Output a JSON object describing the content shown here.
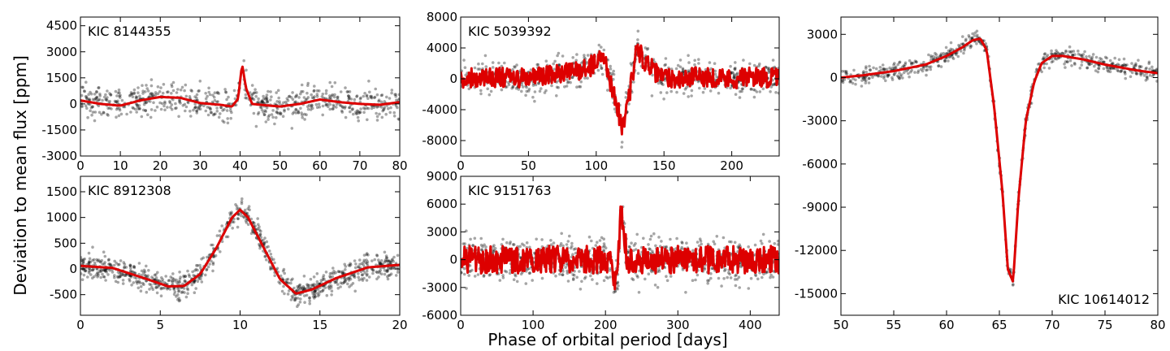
{
  "figure": {
    "ylabel": "Deviation to mean flux [ppm]",
    "xlabel": "Phase of orbital period [days]"
  },
  "colors": {
    "data_points": "#000000",
    "model_line": "#dd0000"
  },
  "chart_data": [
    {
      "type": "scatter",
      "label": "KIC 8144355",
      "label_position": "top-left",
      "xlim": [
        0,
        80
      ],
      "ylim": [
        -3000,
        5000
      ],
      "xticks": [
        0,
        10,
        20,
        30,
        40,
        50,
        60,
        70,
        80
      ],
      "yticks": [
        -3000,
        -1500,
        0,
        1500,
        3000,
        4500
      ],
      "model": {
        "x": [
          0,
          5,
          10,
          15,
          20,
          25,
          30,
          35,
          38,
          39.5,
          40.5,
          41.5,
          43,
          45,
          50,
          55,
          60,
          65,
          70,
          75,
          80
        ],
        "y": [
          200,
          0,
          -100,
          200,
          400,
          350,
          50,
          -50,
          -150,
          300,
          2300,
          900,
          0,
          -50,
          -150,
          0,
          250,
          100,
          0,
          -50,
          100
        ]
      },
      "scatter_spread": 900,
      "n_points": 700
    },
    {
      "type": "scatter",
      "label": "KIC 5039392",
      "label_position": "top-left",
      "xlim": [
        0,
        235
      ],
      "ylim": [
        -10000,
        8000
      ],
      "xticks": [
        0,
        50,
        100,
        150,
        200
      ],
      "yticks": [
        -8000,
        -4000,
        0,
        4000,
        8000
      ],
      "model": {
        "x": [
          0,
          20,
          40,
          60,
          80,
          95,
          105,
          110,
          115,
          119,
          125,
          130,
          135,
          145,
          160,
          180,
          200,
          220,
          235
        ],
        "y": [
          0,
          300,
          0,
          300,
          800,
          1500,
          3000,
          0,
          -3000,
          -6500,
          -1500,
          4000,
          2500,
          500,
          0,
          300,
          0,
          300,
          0
        ],
        "noise": 1300
      },
      "scatter_spread": 2000,
      "n_points": 700
    },
    {
      "type": "scatter",
      "label": "KIC 10614012",
      "label_position": "bottom-right",
      "xlim": [
        50,
        80
      ],
      "ylim": [
        -16500,
        4200
      ],
      "xticks": [
        50,
        55,
        60,
        65,
        70,
        75,
        80
      ],
      "yticks": [
        -15000,
        -12000,
        -9000,
        -6000,
        -3000,
        0,
        3000
      ],
      "model": {
        "x": [
          50,
          52,
          55,
          58,
          60,
          61.5,
          62.5,
          63.2,
          63.8,
          64.5,
          65.3,
          65.8,
          66.3,
          66.8,
          67.5,
          68.3,
          69,
          70,
          71,
          73,
          75,
          78,
          80
        ],
        "y": [
          0,
          150,
          450,
          900,
          1500,
          2100,
          2600,
          2700,
          1900,
          -2000,
          -8000,
          -13300,
          -14200,
          -8500,
          -3000,
          -300,
          1000,
          1500,
          1500,
          1250,
          900,
          500,
          300
        ]
      },
      "scatter_spread": 550,
      "n_points": 650
    },
    {
      "type": "scatter",
      "label": "KIC 8912308",
      "label_position": "top-left",
      "xlim": [
        0,
        20
      ],
      "ylim": [
        -900,
        1800
      ],
      "xticks": [
        0,
        5,
        10,
        15,
        20
      ],
      "yticks": [
        -500,
        0,
        500,
        1000,
        1500
      ],
      "model": {
        "x": [
          0,
          2,
          4,
          5.5,
          6.5,
          7.5,
          8.5,
          9.5,
          10,
          10.5,
          11.5,
          12.5,
          13.5,
          14.5,
          16,
          18,
          20
        ],
        "y": [
          60,
          20,
          -180,
          -340,
          -330,
          -100,
          400,
          1000,
          1150,
          1000,
          400,
          -200,
          -480,
          -400,
          -180,
          30,
          80
        ]
      },
      "scatter_spread": 230,
      "n_points": 900
    },
    {
      "type": "scatter",
      "label": "KIC 9151763",
      "label_position": "top-left",
      "xlim": [
        0,
        440
      ],
      "ylim": [
        -6000,
        9000
      ],
      "xticks": [
        0,
        100,
        200,
        300,
        400
      ],
      "yticks": [
        -6000,
        -3000,
        0,
        3000,
        6000,
        9000
      ],
      "model": {
        "x": [
          0,
          100,
          200,
          207,
          212,
          217,
          221,
          225,
          230,
          240,
          300,
          400,
          440
        ],
        "y": [
          0,
          0,
          0,
          -500,
          -2500,
          -1500,
          5500,
          3500,
          0,
          0,
          0,
          0,
          0
        ],
        "noise": 1500
      },
      "scatter_spread": 2300,
      "n_points": 800
    }
  ]
}
